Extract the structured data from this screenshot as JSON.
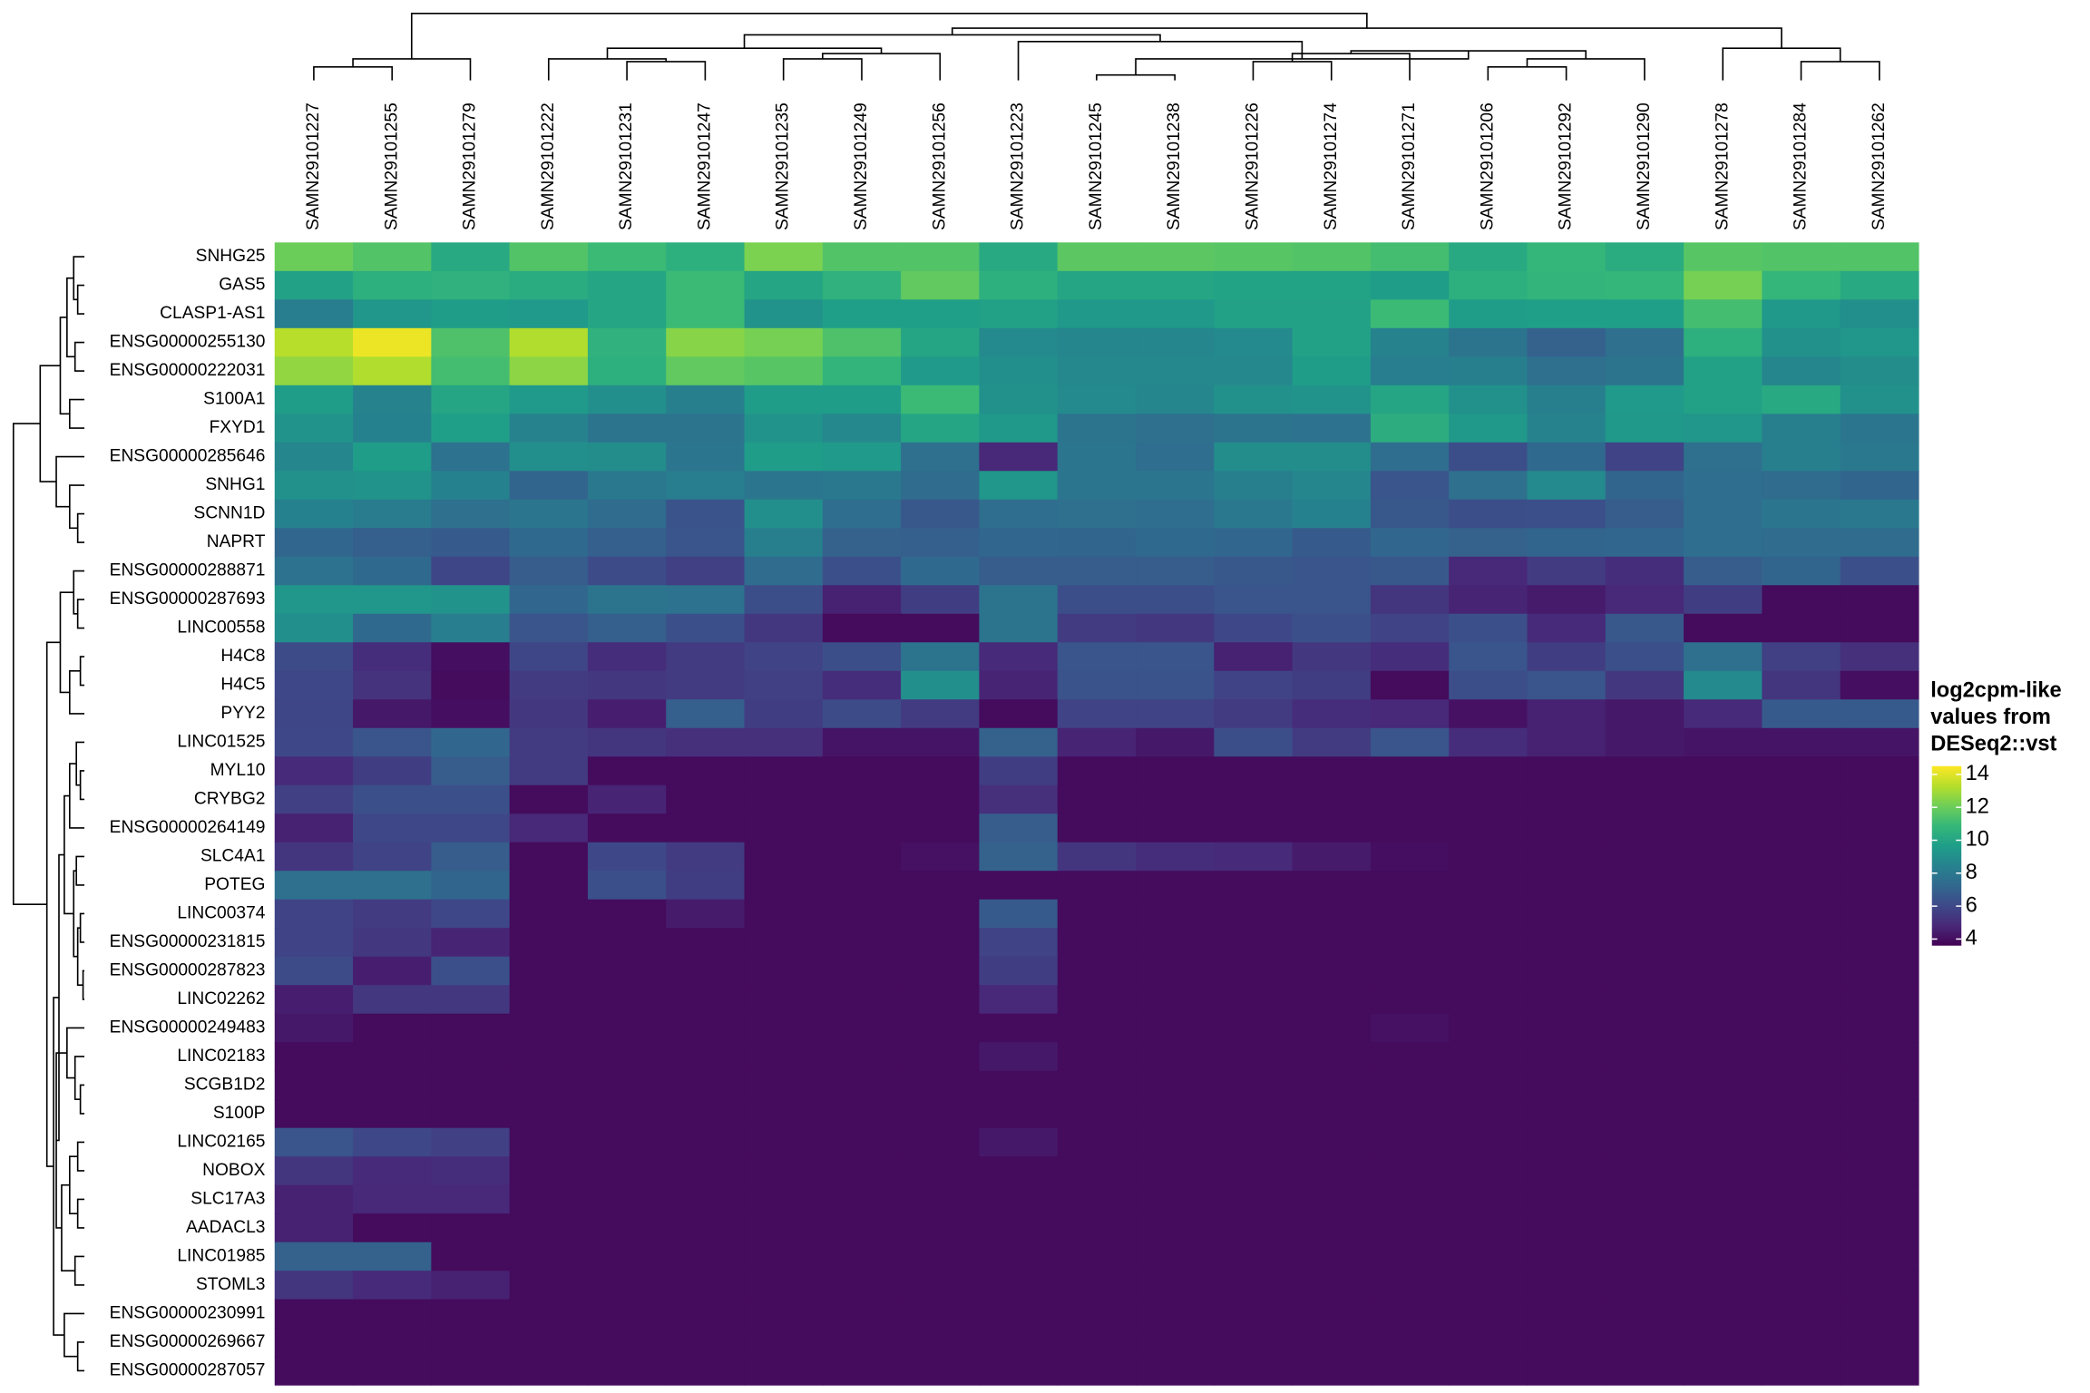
{
  "chart_data": {
    "type": "heatmap",
    "columns": [
      "SAMN29101227",
      "SAMN29101255",
      "SAMN29101279",
      "SAMN29101222",
      "SAMN29101231",
      "SAMN29101247",
      "SAMN29101235",
      "SAMN29101249",
      "SAMN29101256",
      "SAMN29101223",
      "SAMN29101245",
      "SAMN29101238",
      "SAMN29101226",
      "SAMN29101274",
      "SAMN29101271",
      "SAMN29101206",
      "SAMN29101292",
      "SAMN29101290",
      "SAMN29101278",
      "SAMN29101284",
      "SAMN29101262"
    ],
    "rows": [
      "SNHG25",
      "GAS5",
      "CLASP1-AS1",
      "ENSG00000255130",
      "ENSG00000222031",
      "S100A1",
      "FXYD1",
      "ENSG00000285646",
      "SNHG1",
      "SCNN1D",
      "NAPRT",
      "ENSG00000288871",
      "ENSG00000287693",
      "LINC00558",
      "H4C8",
      "H4C5",
      "PYY2",
      "LINC01525",
      "MYL10",
      "CRYBG2",
      "ENSG00000264149",
      "SLC4A1",
      "POTEG",
      "LINC00374",
      "ENSG00000231815",
      "ENSG00000287823",
      "LINC02262",
      "ENSG00000249483",
      "LINC02183",
      "SCGB1D2",
      "S100P",
      "LINC02165",
      "NOBOX",
      "SLC17A3",
      "AADACL3",
      "LINC01985",
      "STOML3",
      "ENSG00000230991",
      "ENSG00000269667",
      "ENSG00000287057"
    ],
    "values": [
      [
        12,
        11.5,
        10.2,
        11.5,
        11,
        10.5,
        12.3,
        11.5,
        11.5,
        10.2,
        11.7,
        11.7,
        11.6,
        11.5,
        11.2,
        10.2,
        10.8,
        10.3,
        11.6,
        11.5,
        11.5
      ],
      [
        9.8,
        10.5,
        10.6,
        10.3,
        10,
        11,
        10,
        10.6,
        11.8,
        10.5,
        10,
        10,
        9.9,
        9.9,
        9.6,
        10.5,
        10.7,
        10.8,
        12.2,
        10.8,
        10.2
      ],
      [
        8.2,
        9.3,
        9.6,
        9.5,
        10,
        11,
        9.2,
        9.7,
        9.7,
        9.8,
        9.4,
        9.4,
        9.8,
        9.8,
        11,
        9.6,
        9.7,
        9.7,
        11.2,
        9.4,
        9
      ],
      [
        13.3,
        14.2,
        11.4,
        13.2,
        10.6,
        12.5,
        12.2,
        11.4,
        10,
        8.8,
        8.6,
        8.6,
        8.8,
        9.8,
        8.5,
        7.8,
        7,
        7.6,
        10.5,
        9.1,
        9.3
      ],
      [
        12.7,
        13.2,
        11.2,
        12.6,
        10.5,
        11.8,
        11.6,
        10.7,
        9.5,
        9,
        8.7,
        8.7,
        8.7,
        9.6,
        8.2,
        8.3,
        7.6,
        7.8,
        9.8,
        8.6,
        8.9
      ],
      [
        9.6,
        8.5,
        10,
        9.5,
        9,
        8.3,
        9.6,
        9.6,
        11,
        9.1,
        8.8,
        8.6,
        9.1,
        9.2,
        10,
        9.1,
        8.3,
        9.5,
        9.8,
        10.2,
        9.1
      ],
      [
        9.2,
        8.4,
        9.7,
        8.5,
        7.8,
        7.8,
        9.2,
        8.7,
        10,
        9.4,
        7.8,
        7.6,
        7.8,
        7.7,
        10.4,
        9.4,
        8.5,
        9.4,
        9.3,
        8.3,
        7.9
      ],
      [
        8.6,
        9.6,
        7.7,
        9,
        8.9,
        7.9,
        9.6,
        9.5,
        7.6,
        4.8,
        7.9,
        7.5,
        8.9,
        8.9,
        7.5,
        6.2,
        7.3,
        5.8,
        7.6,
        8.3,
        8
      ],
      [
        9.1,
        9.2,
        8.4,
        7.1,
        8,
        8.2,
        7.9,
        8,
        7.4,
        9.3,
        7.9,
        7.9,
        8.3,
        8.6,
        6.5,
        7.6,
        8.8,
        7.1,
        7.5,
        7.4,
        7.1
      ],
      [
        8.4,
        8.1,
        7.6,
        7.9,
        7.4,
        6.4,
        9,
        7.5,
        6.6,
        7.5,
        7.6,
        7.5,
        8,
        8.4,
        6.6,
        6.2,
        6.3,
        6.8,
        7.5,
        7.9,
        8
      ],
      [
        7.2,
        6.9,
        6.7,
        7.3,
        6.9,
        6.5,
        8.3,
        7,
        6.9,
        7.2,
        7.1,
        7.3,
        7.2,
        6.7,
        7.2,
        7,
        7.1,
        7.2,
        7.5,
        7.4,
        7.4
      ],
      [
        7.7,
        7.3,
        5.9,
        6.8,
        6.1,
        5.7,
        7.4,
        6.3,
        7.3,
        6.8,
        6.8,
        6.8,
        6.6,
        6.5,
        6.6,
        4.8,
        5.5,
        5,
        6.8,
        7.1,
        6.3
      ],
      [
        9.3,
        9.3,
        9.2,
        7.2,
        7.8,
        7.7,
        6.2,
        4.6,
        5.6,
        7.8,
        6.2,
        6.2,
        6.5,
        6.5,
        5.3,
        4.7,
        4.4,
        4.8,
        5.6,
        3.9,
        3.9
      ],
      [
        9,
        7.3,
        8.2,
        6.5,
        6.9,
        6.3,
        5.4,
        3.9,
        3.9,
        7.8,
        5.5,
        5.4,
        6,
        6.3,
        5.8,
        6.3,
        4.9,
        6.6,
        3.9,
        3.9,
        3.9
      ],
      [
        6.1,
        5,
        4,
        5.9,
        5,
        5.5,
        5.8,
        6.2,
        7.8,
        4.9,
        6.5,
        6.5,
        4.6,
        5.4,
        5,
        6.5,
        5.6,
        6.3,
        7.6,
        5.7,
        5.1
      ],
      [
        6,
        5.2,
        3.9,
        5.5,
        5.4,
        5.5,
        5.7,
        5,
        9,
        4.7,
        6.4,
        6.4,
        5.8,
        5.6,
        3.9,
        6.2,
        6.5,
        5.4,
        8.8,
        5.3,
        4
      ],
      [
        5.9,
        4.3,
        4,
        5.4,
        4.5,
        6.9,
        5.6,
        6.1,
        5.5,
        3.9,
        5.8,
        5.8,
        5.5,
        5,
        4.8,
        4.1,
        4.6,
        4.3,
        4.9,
        6.7,
        6.7
      ],
      [
        6,
        6.5,
        7.2,
        5.5,
        5.3,
        5.1,
        5.1,
        4.2,
        4.2,
        7,
        4.7,
        4.3,
        6.2,
        5.5,
        6.5,
        5,
        4.6,
        4.3,
        4.2,
        4.2,
        4.2
      ],
      [
        4.9,
        5.6,
        6.8,
        5.5,
        3.9,
        3.9,
        3.9,
        3.9,
        3.9,
        5.6,
        3.9,
        3.9,
        3.9,
        3.9,
        3.9,
        3.9,
        3.9,
        3.9,
        3.9,
        3.9,
        3.9
      ],
      [
        5.7,
        6.3,
        6.3,
        3.9,
        4.7,
        3.9,
        3.9,
        3.9,
        3.9,
        5.1,
        3.9,
        3.9,
        3.9,
        3.9,
        3.9,
        3.9,
        3.9,
        3.9,
        3.9,
        3.9,
        3.9
      ],
      [
        4.6,
        6,
        6,
        4.8,
        3.9,
        3.9,
        3.9,
        3.9,
        3.9,
        6.8,
        3.9,
        3.9,
        3.9,
        3.9,
        3.9,
        3.9,
        3.9,
        3.9,
        3.9,
        3.9,
        3.9
      ],
      [
        5.3,
        5.8,
        6.8,
        3.9,
        6,
        5.5,
        3.9,
        3.9,
        4.1,
        7,
        5.3,
        5,
        4.9,
        4.4,
        4,
        3.9,
        3.9,
        3.9,
        3.9,
        3.9,
        3.9
      ],
      [
        7.6,
        7.6,
        7.1,
        3.9,
        6.3,
        5.6,
        3.9,
        3.9,
        3.9,
        3.9,
        3.9,
        3.9,
        3.9,
        3.9,
        3.9,
        3.9,
        3.9,
        3.9,
        3.9,
        3.9,
        3.9
      ],
      [
        5.8,
        5.5,
        6,
        3.9,
        3.9,
        4.4,
        3.9,
        3.9,
        3.9,
        6.7,
        3.9,
        3.9,
        3.9,
        3.9,
        3.9,
        3.9,
        3.9,
        3.9,
        3.9,
        3.9,
        3.9
      ],
      [
        5.8,
        5.4,
        4.7,
        3.9,
        3.9,
        3.9,
        3.9,
        3.9,
        3.9,
        5.8,
        3.9,
        3.9,
        3.9,
        3.9,
        3.9,
        3.9,
        3.9,
        3.9,
        3.9,
        3.9,
        3.9
      ],
      [
        6.1,
        4.5,
        6.3,
        3.9,
        3.9,
        3.9,
        3.9,
        3.9,
        3.9,
        5.6,
        3.9,
        3.9,
        3.9,
        3.9,
        3.9,
        3.9,
        3.9,
        3.9,
        3.9,
        3.9,
        3.9
      ],
      [
        4.5,
        5.4,
        5.4,
        3.9,
        3.9,
        3.9,
        3.9,
        3.9,
        3.9,
        4.8,
        3.9,
        3.9,
        3.9,
        3.9,
        3.9,
        3.9,
        3.9,
        3.9,
        3.9,
        3.9,
        3.9
      ],
      [
        4.3,
        3.9,
        3.9,
        3.9,
        3.9,
        3.9,
        3.9,
        3.9,
        3.9,
        3.9,
        3.9,
        3.9,
        3.9,
        3.9,
        4.1,
        3.9,
        3.9,
        3.9,
        3.9,
        3.9,
        3.9
      ],
      [
        3.9,
        3.9,
        3.9,
        3.9,
        3.9,
        3.9,
        3.9,
        3.9,
        3.9,
        4.3,
        3.9,
        3.9,
        3.9,
        3.9,
        3.9,
        3.9,
        3.9,
        3.9,
        3.9,
        3.9,
        3.9
      ],
      [
        3.9,
        3.9,
        3.9,
        3.9,
        3.9,
        3.9,
        3.9,
        3.9,
        3.9,
        3.9,
        3.9,
        3.9,
        3.9,
        3.9,
        3.9,
        3.9,
        3.9,
        3.9,
        3.9,
        3.9,
        3.9
      ],
      [
        3.9,
        3.9,
        3.9,
        3.9,
        3.9,
        3.9,
        3.9,
        3.9,
        3.9,
        3.9,
        3.9,
        3.9,
        3.9,
        3.9,
        3.9,
        3.9,
        3.9,
        3.9,
        3.9,
        3.9,
        3.9
      ],
      [
        6.5,
        6,
        5.7,
        3.9,
        3.9,
        3.9,
        3.9,
        3.9,
        3.9,
        4.3,
        3.9,
        3.9,
        3.9,
        3.9,
        3.9,
        3.9,
        3.9,
        3.9,
        3.9,
        3.9,
        3.9
      ],
      [
        5.3,
        4.9,
        5,
        3.9,
        3.9,
        3.9,
        3.9,
        3.9,
        3.9,
        3.9,
        3.9,
        3.9,
        3.9,
        3.9,
        3.9,
        3.9,
        3.9,
        3.9,
        3.9,
        3.9,
        3.9
      ],
      [
        4.6,
        4.8,
        4.8,
        3.9,
        3.9,
        3.9,
        3.9,
        3.9,
        3.9,
        3.9,
        3.9,
        3.9,
        3.9,
        3.9,
        3.9,
        3.9,
        3.9,
        3.9,
        3.9,
        3.9,
        3.9
      ],
      [
        4.6,
        3.9,
        3.9,
        3.9,
        3.9,
        3.9,
        3.9,
        3.9,
        3.9,
        3.9,
        3.9,
        3.9,
        3.9,
        3.9,
        3.9,
        3.9,
        3.9,
        3.9,
        3.9,
        3.9,
        3.9
      ],
      [
        7,
        7,
        3.9,
        3.9,
        3.9,
        3.9,
        3.9,
        3.9,
        3.9,
        3.9,
        3.9,
        3.9,
        3.9,
        3.9,
        3.9,
        3.9,
        3.9,
        3.9,
        3.9,
        3.9,
        3.9
      ],
      [
        5.3,
        4.9,
        4.6,
        3.9,
        3.9,
        3.9,
        3.9,
        3.9,
        3.9,
        3.9,
        3.9,
        3.9,
        3.9,
        3.9,
        3.9,
        3.9,
        3.9,
        3.9,
        3.9,
        3.9,
        3.9
      ],
      [
        3.9,
        3.9,
        3.9,
        3.9,
        3.9,
        3.9,
        3.9,
        3.9,
        3.9,
        3.9,
        3.9,
        3.9,
        3.9,
        3.9,
        3.9,
        3.9,
        3.9,
        3.9,
        3.9,
        3.9,
        3.9
      ],
      [
        3.9,
        3.9,
        3.9,
        3.9,
        3.9,
        3.9,
        3.9,
        3.9,
        3.9,
        3.9,
        3.9,
        3.9,
        3.9,
        3.9,
        3.9,
        3.9,
        3.9,
        3.9,
        3.9,
        3.9,
        3.9
      ],
      [
        3.9,
        3.9,
        3.9,
        3.9,
        3.9,
        3.9,
        3.9,
        3.9,
        3.9,
        3.9,
        3.9,
        3.9,
        3.9,
        3.9,
        3.9,
        3.9,
        3.9,
        3.9,
        3.9,
        3.9,
        3.9
      ]
    ],
    "colors": [
      "#440154",
      "#482878",
      "#3e4989",
      "#31688e",
      "#26828e",
      "#1f9e89",
      "#35b779",
      "#6ece58",
      "#b5de2b",
      "#fde725"
    ],
    "clim": [
      3.6,
      14.5
    ],
    "legend_title": [
      "log2cpm-like",
      "values from",
      "DESeq2::vst"
    ],
    "legend_ticks": [
      4,
      6,
      8,
      10,
      12,
      14
    ]
  }
}
